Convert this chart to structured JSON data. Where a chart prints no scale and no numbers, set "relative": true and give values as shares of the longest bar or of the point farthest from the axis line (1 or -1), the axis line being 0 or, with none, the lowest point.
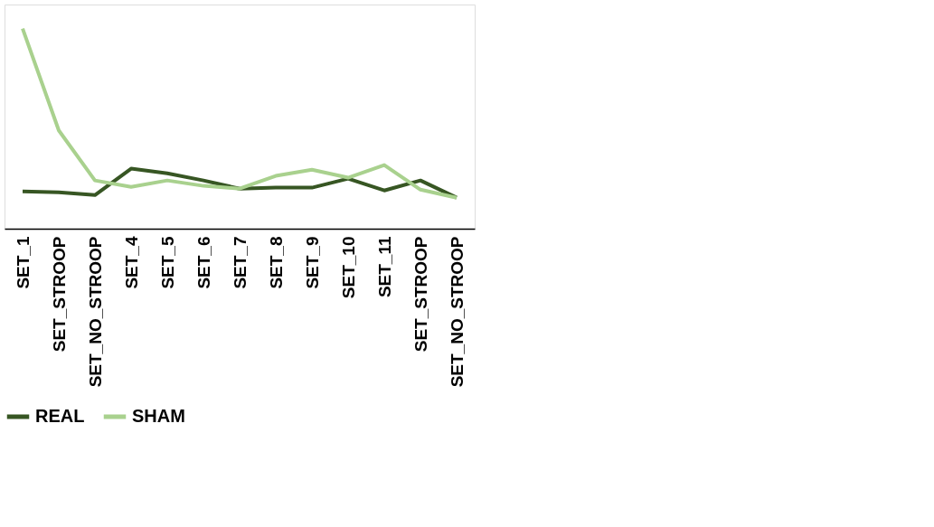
{
  "chart_data": {
    "type": "line",
    "relative": true,
    "legend": "bottom",
    "grid": false,
    "marker": "none",
    "line_style": "solid",
    "categories": [
      "SET_1",
      "SET_STROOP",
      "SET_NO_STROOP",
      "SET_4",
      "SET_5",
      "SET_6",
      "SET_7",
      "SET_8",
      "SET_9",
      "SET_10",
      "SET_11",
      "SET_STROOP",
      "SET_NO_STROOP"
    ],
    "series": [
      {
        "name": "REAL",
        "color": "#375623",
        "values": [
          0.186,
          0.182,
          0.168,
          0.3,
          0.277,
          0.241,
          0.2,
          0.205,
          0.205,
          0.25,
          0.191,
          0.241,
          0.155
        ]
      },
      {
        "name": "SHAM",
        "color": "#a9d18e",
        "values": [
          1.0,
          0.491,
          0.241,
          0.209,
          0.241,
          0.214,
          0.2,
          0.264,
          0.295,
          0.255,
          0.318,
          0.195,
          0.155
        ]
      }
    ]
  }
}
